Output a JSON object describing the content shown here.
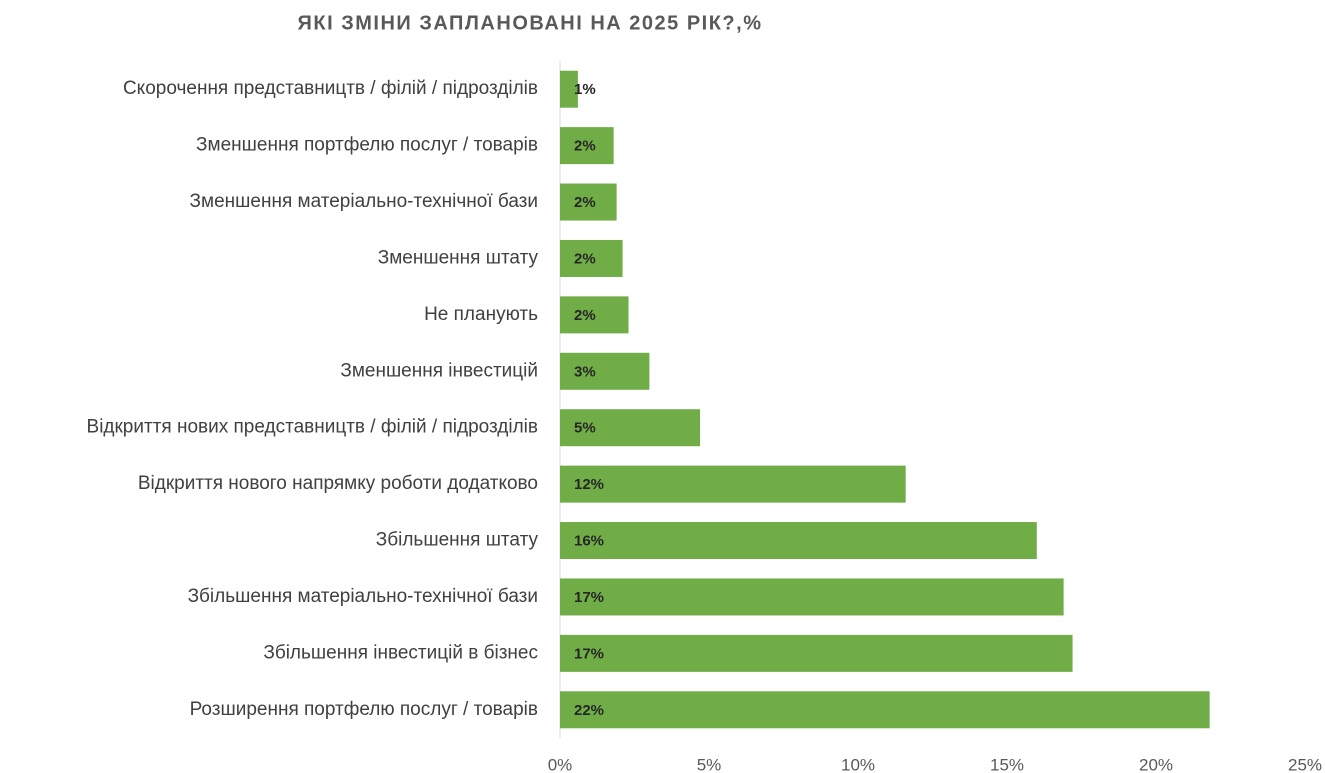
{
  "chart_data": {
    "type": "bar",
    "orientation": "horizontal",
    "title": "ЯКІ ЗМІНИ ЗАПЛАНОВАНІ НА 2025 РІК?,%",
    "categories": [
      "Скорочення представництв / філій / підрозділів",
      "Зменшення портфелю послуг / товарів",
      "Зменшення матеріально-технічної бази",
      "Зменшення штату",
      "Не планують",
      "Зменшення інвестицій",
      "Відкриття нових представництв / філій / підрозділів",
      "Відкриття нового напрямку роботи додатково",
      "Збільшення штату",
      "Збільшення матеріально-технічної бази",
      "Збільшення інвестицій в бізнес",
      "Розширення портфелю послуг / товарів"
    ],
    "values": [
      0.6,
      1.8,
      1.9,
      2.1,
      2.3,
      3.0,
      4.7,
      11.6,
      16.0,
      16.9,
      17.2,
      21.8
    ],
    "value_labels": [
      "1%",
      "2%",
      "2%",
      "2%",
      "2%",
      "3%",
      "5%",
      "12%",
      "16%",
      "17%",
      "17%",
      "22%"
    ],
    "color": "#70ad47",
    "xlim": [
      0,
      25
    ],
    "xticks": [
      {
        "value": 0,
        "label": "0%"
      },
      {
        "value": 5,
        "label": "5%"
      },
      {
        "value": 10,
        "label": "10%"
      },
      {
        "value": 15,
        "label": "15%"
      },
      {
        "value": 20,
        "label": "20%"
      },
      {
        "value": 25,
        "label": "25%"
      }
    ]
  }
}
